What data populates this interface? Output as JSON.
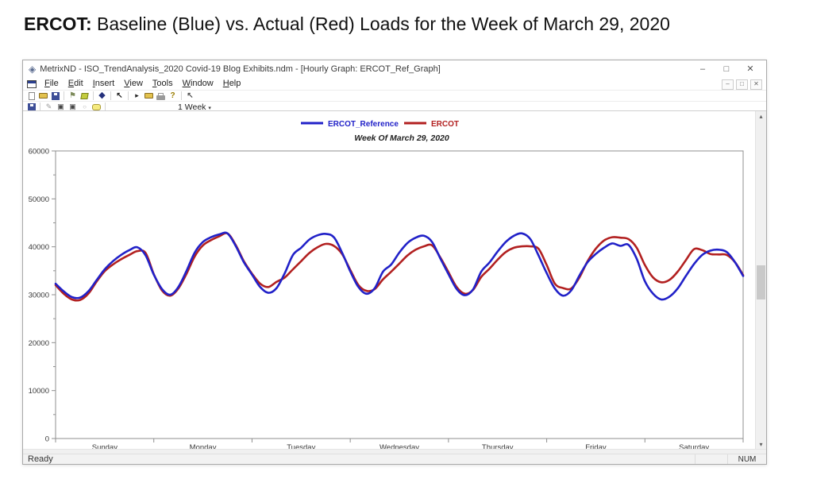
{
  "page": {
    "heading_bold": "ERCOT:",
    "heading_rest": " Baseline (Blue) vs. Actual (Red) Loads for the Week of March 29, 2020"
  },
  "window": {
    "title": "MetrixND - ISO_TrendAnalysis_2020 Covid-19 Blog Exhibits.ndm - [Hourly Graph: ERCOT_Ref_Graph]",
    "logo_icon": "metrixnd-diamond-logo",
    "controls": [
      {
        "name": "minimize-button",
        "glyph": "–"
      },
      {
        "name": "maximize-button",
        "glyph": "□"
      },
      {
        "name": "close-button",
        "glyph": "✕"
      }
    ],
    "menu": [
      "File",
      "Edit",
      "Insert",
      "View",
      "Tools",
      "Window",
      "Help"
    ],
    "mdi_controls": [
      {
        "name": "mdi-minimize-button",
        "glyph": "–"
      },
      {
        "name": "mdi-restore-button",
        "glyph": "□"
      },
      {
        "name": "mdi-close-button",
        "glyph": "✕"
      }
    ],
    "toolbars": {
      "row1": [
        "new",
        "open",
        "save",
        "separator",
        "flag",
        "sheets",
        "separator",
        "diamond",
        "separator",
        "pointer",
        "separator",
        "play",
        "export",
        "print",
        "help",
        "separator",
        "select"
      ],
      "row2": [
        "saveall",
        "separator",
        "pen",
        "window",
        "window",
        "circle",
        "bubble",
        "separator"
      ],
      "range_label": "1 Week",
      "range_caret": "▾"
    },
    "status": {
      "ready": "Ready",
      "num": "NUM"
    }
  },
  "chart_data": {
    "type": "line",
    "title": "Week Of March 29, 2020",
    "xlabel": "",
    "ylabel": "",
    "categories": [
      "Sunday",
      "Monday",
      "Tuesday",
      "Wednesday",
      "Thursday",
      "Friday",
      "Saturday"
    ],
    "x_unit": "hour",
    "x_range": [
      0,
      168
    ],
    "step_hours": 2,
    "ylim": [
      0,
      60000
    ],
    "y_tick_step": 10000,
    "y_minor_tick_step": 5000,
    "grid": false,
    "legend_position": "top-center",
    "series": [
      {
        "name": "ERCOT_Reference",
        "color": "#2121c8",
        "values": [
          32300,
          30700,
          29500,
          29400,
          30700,
          33000,
          35300,
          37000,
          38300,
          39300,
          39900,
          38200,
          34200,
          31200,
          30000,
          31600,
          35000,
          38800,
          41000,
          42000,
          42600,
          42800,
          40200,
          36800,
          34200,
          31600,
          30400,
          31400,
          34500,
          38300,
          39800,
          41500,
          42400,
          42700,
          42000,
          38800,
          34900,
          31600,
          30200,
          31400,
          34800,
          36300,
          38800,
          40800,
          41900,
          42300,
          41000,
          37600,
          34300,
          31200,
          29900,
          31100,
          34800,
          36700,
          39000,
          41000,
          42300,
          42800,
          41600,
          38200,
          34500,
          31300,
          29800,
          30900,
          34000,
          36800,
          38500,
          39800,
          40700,
          40200,
          40400,
          37500,
          32800,
          30200,
          29000,
          29600,
          31300,
          33900,
          36400,
          38300,
          39200,
          39400,
          38900,
          36800,
          33900
        ]
      },
      {
        "name": "ERCOT",
        "color": "#b22020",
        "values": [
          32000,
          30200,
          29000,
          28900,
          30200,
          32700,
          34900,
          36300,
          37400,
          38300,
          39100,
          38700,
          34300,
          30900,
          29800,
          31300,
          34400,
          38000,
          40300,
          41400,
          42200,
          42800,
          40400,
          37000,
          34400,
          32300,
          31600,
          32700,
          33600,
          35300,
          37000,
          38700,
          39900,
          40600,
          40200,
          38500,
          35200,
          32000,
          30800,
          31200,
          33200,
          34800,
          36500,
          38200,
          39400,
          40100,
          40300,
          37800,
          34700,
          31600,
          30200,
          31000,
          33700,
          35400,
          37300,
          38900,
          39800,
          40100,
          40100,
          39600,
          36200,
          32300,
          31400,
          31300,
          33600,
          37000,
          39600,
          41300,
          42000,
          41900,
          41600,
          39800,
          36200,
          33600,
          32600,
          33100,
          34800,
          37200,
          39500,
          39300,
          38500,
          38400,
          38300,
          36800,
          34100
        ]
      }
    ]
  }
}
